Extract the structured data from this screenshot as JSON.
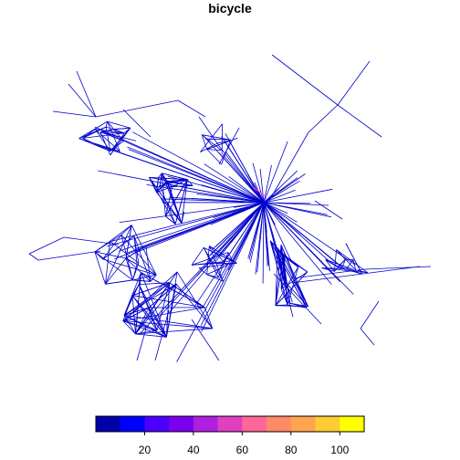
{
  "title": "bicycle",
  "legend": {
    "tick_labels": [
      "20",
      "40",
      "60",
      "80",
      "100"
    ],
    "tick_values": [
      20,
      40,
      60,
      80,
      100
    ],
    "range": [
      0,
      110
    ],
    "colors": [
      "#0000AA",
      "#0000FF",
      "#4B00FF",
      "#7A00F0",
      "#B01FE0",
      "#E040C0",
      "#FF6699",
      "#FF8A66",
      "#FFA550",
      "#FFCC33",
      "#FFFF00"
    ]
  },
  "network": {
    "description_value": "desire lines of bicycle trips between zones, colored by trip count",
    "max_flow_color": "#FF44CC"
  }
}
